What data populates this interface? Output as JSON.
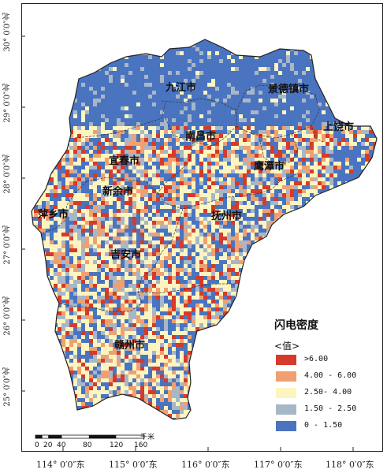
{
  "map": {
    "y_ticks": [
      "30° 0′0″北",
      "29° 0′0″北",
      "28° 0′0″北",
      "27° 0′0″北",
      "26° 0′0″北",
      "25° 0′0″北"
    ],
    "x_ticks": [
      "114° 0′0″东",
      "115° 0′0″东",
      "116° 0′0″东",
      "117° 0′0″东",
      "118° 0′0″东"
    ],
    "cities": [
      "九江市",
      "景德镇市",
      "上饶市",
      "南昌市",
      "宜春市",
      "鹰潭市",
      "新余市",
      "萍乡市",
      "抚州市",
      "吉安市",
      "赣州市"
    ]
  },
  "legend": {
    "title": "闪电密度",
    "subtitle": "<值>",
    "items": [
      {
        "label": ">6.00",
        "color": "#d63a2a"
      },
      {
        "label": "4.00 - 6.00",
        "color": "#f0a070"
      },
      {
        "label": "2.50- 4.00",
        "color": "#fdf5c0"
      },
      {
        "label": "1.50 - 2.50",
        "color": "#a8b7c8"
      },
      {
        "label": "0 - 1.50",
        "color": "#4a74c0"
      }
    ]
  },
  "scale_bar": {
    "labels": [
      "0",
      "20",
      "40",
      "80",
      "120",
      "160"
    ],
    "unit": "千米"
  }
}
